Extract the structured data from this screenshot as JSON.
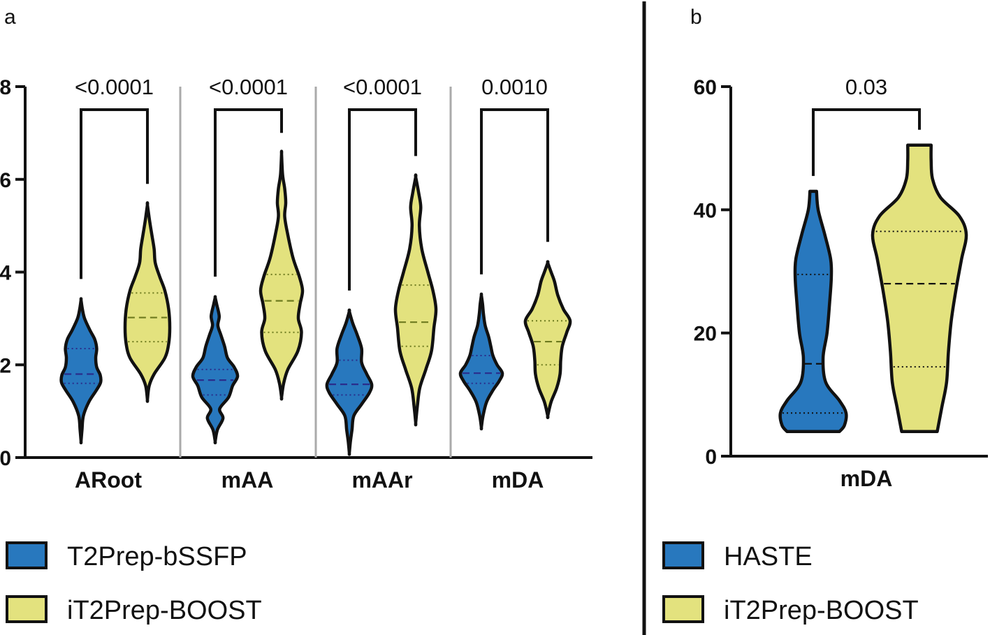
{
  "colors": {
    "blue": "#2878be",
    "yellow": "#e3e27e",
    "blue_median": "#2a2d8c",
    "yellow_median": "#6d7a1e"
  },
  "chart_data": [
    {
      "type": "violin",
      "panel": "a",
      "categories": [
        "ARoot",
        "mAA",
        "mAAr",
        "mDA"
      ],
      "ylim": [
        0,
        8
      ],
      "yticks": [
        "0",
        "2",
        "4",
        "6",
        "8"
      ],
      "p_values": [
        "<0.0001",
        "<0.0001",
        "<0.0001",
        "0.0010"
      ],
      "series": [
        {
          "name": "T2Prep-bSSFP",
          "color": "blue",
          "groups": [
            {
              "category": "ARoot",
              "min": 0.35,
              "max": 3.4,
              "q1": 1.6,
              "median": 1.8,
              "q3": 2.35,
              "profile": [
                [
                  0.35,
                  0.0
                ],
                [
                  0.6,
                  0.05
                ],
                [
                  0.9,
                  0.12
                ],
                [
                  1.2,
                  0.4
                ],
                [
                  1.45,
                  0.78
                ],
                [
                  1.62,
                  1.0
                ],
                [
                  1.78,
                  0.98
                ],
                [
                  1.95,
                  0.8
                ],
                [
                  2.15,
                  0.75
                ],
                [
                  2.35,
                  0.8
                ],
                [
                  2.55,
                  0.7
                ],
                [
                  2.75,
                  0.45
                ],
                [
                  3.0,
                  0.18
                ],
                [
                  3.2,
                  0.07
                ],
                [
                  3.4,
                  0.0
                ]
              ]
            },
            {
              "category": "mAA",
              "min": 0.35,
              "max": 3.45,
              "q1": 1.35,
              "median": 1.67,
              "q3": 1.9,
              "profile": [
                [
                  0.35,
                  0.0
                ],
                [
                  0.6,
                  0.1
                ],
                [
                  0.85,
                  0.35
                ],
                [
                  1.05,
                  0.2
                ],
                [
                  1.3,
                  0.6
                ],
                [
                  1.55,
                  0.78
                ],
                [
                  1.75,
                  1.0
                ],
                [
                  1.95,
                  0.85
                ],
                [
                  2.15,
                  0.55
                ],
                [
                  2.4,
                  0.42
                ],
                [
                  2.65,
                  0.25
                ],
                [
                  2.85,
                  0.12
                ],
                [
                  3.05,
                  0.18
                ],
                [
                  3.3,
                  0.07
                ],
                [
                  3.45,
                  0.0
                ]
              ]
            },
            {
              "category": "mAAr",
              "min": 0.1,
              "max": 3.15,
              "q1": 1.35,
              "median": 1.58,
              "q3": 2.1,
              "profile": [
                [
                  0.1,
                  0.0
                ],
                [
                  0.35,
                  0.05
                ],
                [
                  0.6,
                  0.12
                ],
                [
                  0.9,
                  0.2
                ],
                [
                  1.15,
                  0.55
                ],
                [
                  1.4,
                  0.9
                ],
                [
                  1.58,
                  1.0
                ],
                [
                  1.8,
                  0.78
                ],
                [
                  2.05,
                  0.55
                ],
                [
                  2.35,
                  0.55
                ],
                [
                  2.65,
                  0.35
                ],
                [
                  2.9,
                  0.15
                ],
                [
                  3.15,
                  0.0
                ]
              ]
            },
            {
              "category": "mDA",
              "min": 0.65,
              "max": 3.5,
              "q1": 1.6,
              "median": 1.82,
              "q3": 2.2,
              "profile": [
                [
                  0.65,
                  0.0
                ],
                [
                  0.9,
                  0.08
                ],
                [
                  1.2,
                  0.25
                ],
                [
                  1.45,
                  0.55
                ],
                [
                  1.65,
                  0.85
                ],
                [
                  1.82,
                  1.0
                ],
                [
                  2.0,
                  0.75
                ],
                [
                  2.2,
                  0.55
                ],
                [
                  2.4,
                  0.45
                ],
                [
                  2.6,
                  0.35
                ],
                [
                  2.85,
                  0.18
                ],
                [
                  3.1,
                  0.1
                ],
                [
                  3.3,
                  0.06
                ],
                [
                  3.5,
                  0.0
                ]
              ]
            }
          ]
        },
        {
          "name": "iT2Prep-BOOST",
          "color": "yellow",
          "groups": [
            {
              "category": "ARoot",
              "min": 1.25,
              "max": 5.45,
              "q1": 2.5,
              "median": 3.02,
              "q3": 3.55,
              "profile": [
                [
                  1.25,
                  0.0
                ],
                [
                  1.55,
                  0.08
                ],
                [
                  1.8,
                  0.3
                ],
                [
                  2.15,
                  0.78
                ],
                [
                  2.45,
                  0.95
                ],
                [
                  2.8,
                  1.0
                ],
                [
                  3.2,
                  0.95
                ],
                [
                  3.6,
                  0.78
                ],
                [
                  3.9,
                  0.55
                ],
                [
                  4.2,
                  0.35
                ],
                [
                  4.5,
                  0.3
                ],
                [
                  4.8,
                  0.2
                ],
                [
                  5.1,
                  0.1
                ],
                [
                  5.45,
                  0.0
                ]
              ]
            },
            {
              "category": "mAA",
              "min": 1.3,
              "max": 6.55,
              "q1": 2.7,
              "median": 3.38,
              "q3": 3.95,
              "profile": [
                [
                  1.3,
                  0.0
                ],
                [
                  1.6,
                  0.1
                ],
                [
                  1.9,
                  0.3
                ],
                [
                  2.3,
                  0.78
                ],
                [
                  2.7,
                  0.95
                ],
                [
                  3.0,
                  0.8
                ],
                [
                  3.3,
                  0.88
                ],
                [
                  3.6,
                  1.0
                ],
                [
                  3.9,
                  0.85
                ],
                [
                  4.3,
                  0.55
                ],
                [
                  4.8,
                  0.3
                ],
                [
                  5.2,
                  0.15
                ],
                [
                  5.5,
                  0.2
                ],
                [
                  5.8,
                  0.15
                ],
                [
                  6.1,
                  0.05
                ],
                [
                  6.55,
                  0.0
                ]
              ]
            },
            {
              "category": "mAAr",
              "min": 0.75,
              "max": 6.05,
              "q1": 2.4,
              "median": 2.92,
              "q3": 3.72,
              "profile": [
                [
                  0.75,
                  0.0
                ],
                [
                  1.1,
                  0.08
                ],
                [
                  1.5,
                  0.2
                ],
                [
                  1.9,
                  0.5
                ],
                [
                  2.3,
                  0.78
                ],
                [
                  2.8,
                  0.9
                ],
                [
                  3.2,
                  1.0
                ],
                [
                  3.6,
                  0.85
                ],
                [
                  4.0,
                  0.6
                ],
                [
                  4.5,
                  0.3
                ],
                [
                  5.0,
                  0.18
                ],
                [
                  5.4,
                  0.25
                ],
                [
                  5.7,
                  0.15
                ],
                [
                  6.05,
                  0.0
                ]
              ]
            },
            {
              "category": "mDA",
              "min": 0.9,
              "max": 4.2,
              "q1": 2.0,
              "median": 2.5,
              "q3": 2.95,
              "profile": [
                [
                  0.9,
                  0.0
                ],
                [
                  1.2,
                  0.15
                ],
                [
                  1.5,
                  0.4
                ],
                [
                  1.8,
                  0.55
                ],
                [
                  2.1,
                  0.58
                ],
                [
                  2.4,
                  0.65
                ],
                [
                  2.7,
                  0.85
                ],
                [
                  2.95,
                  1.0
                ],
                [
                  3.2,
                  0.7
                ],
                [
                  3.5,
                  0.45
                ],
                [
                  3.8,
                  0.3
                ],
                [
                  4.0,
                  0.15
                ],
                [
                  4.2,
                  0.0
                ]
              ]
            }
          ]
        }
      ]
    },
    {
      "type": "violin",
      "panel": "b",
      "categories": [
        "mDA"
      ],
      "ylim": [
        0,
        60
      ],
      "yticks": [
        "0",
        "20",
        "40",
        "60"
      ],
      "p_values": [
        "0.03"
      ],
      "series": [
        {
          "name": "HASTE",
          "color": "blue",
          "groups": [
            {
              "category": "mDA",
              "min": 4,
              "max": 43,
              "q1": 7,
              "median": 15,
              "q3": 29.5,
              "flat_ends": true,
              "profile": [
                [
                  4,
                  0.8
                ],
                [
                  5,
                  0.95
                ],
                [
                  7,
                  1.0
                ],
                [
                  9,
                  0.8
                ],
                [
                  12,
                  0.38
                ],
                [
                  16,
                  0.3
                ],
                [
                  20,
                  0.42
                ],
                [
                  25,
                  0.5
                ],
                [
                  29,
                  0.55
                ],
                [
                  32,
                  0.53
                ],
                [
                  36,
                  0.35
                ],
                [
                  40,
                  0.15
                ],
                [
                  43,
                  0.1
                ]
              ]
            }
          ]
        },
        {
          "name": "iT2Prep-BOOST",
          "color": "yellow",
          "groups": [
            {
              "category": "mDA",
              "min": 4,
              "max": 50.5,
              "q1": 14.5,
              "median": 28,
              "q3": 36.5,
              "flat_ends": true,
              "profile": [
                [
                  4,
                  0.38
                ],
                [
                  8,
                  0.48
                ],
                [
                  12,
                  0.58
                ],
                [
                  17,
                  0.62
                ],
                [
                  22,
                  0.68
                ],
                [
                  27,
                  0.78
                ],
                [
                  32,
                  0.9
                ],
                [
                  36,
                  1.0
                ],
                [
                  39,
                  0.85
                ],
                [
                  42,
                  0.45
                ],
                [
                  45,
                  0.28
                ],
                [
                  48,
                  0.25
                ],
                [
                  50.5,
                  0.25
                ]
              ]
            }
          ]
        }
      ]
    }
  ],
  "panel_a": {
    "letter": "a",
    "legend": [
      {
        "label": "T2Prep-bSSFP",
        "color": "blue"
      },
      {
        "label": "iT2Prep-BOOST",
        "color": "yellow"
      }
    ]
  },
  "panel_b": {
    "letter": "b",
    "legend": [
      {
        "label": "HASTE",
        "color": "blue"
      },
      {
        "label": "iT2Prep-BOOST",
        "color": "yellow"
      }
    ]
  }
}
